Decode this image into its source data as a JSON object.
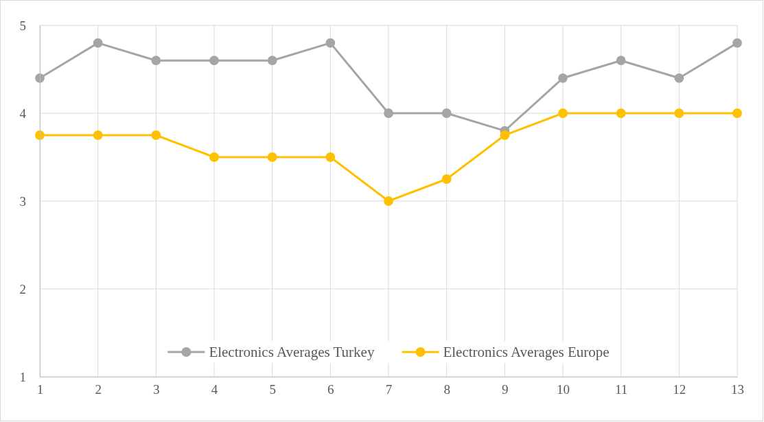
{
  "chart_data": {
    "type": "line",
    "x": [
      1,
      2,
      3,
      4,
      5,
      6,
      7,
      8,
      9,
      10,
      11,
      12,
      13
    ],
    "series": [
      {
        "name": "Electronics Averages Turkey",
        "color": "#a5a5a5",
        "values": [
          4.4,
          4.8,
          4.6,
          4.6,
          4.6,
          4.8,
          4.0,
          4.0,
          3.8,
          4.4,
          4.6,
          4.4,
          4.8
        ]
      },
      {
        "name": "Electronics Averages Europe",
        "color": "#ffc000",
        "values": [
          3.75,
          3.75,
          3.75,
          3.5,
          3.5,
          3.5,
          3.0,
          3.25,
          3.75,
          4,
          4,
          4,
          4
        ]
      }
    ],
    "xlim": [
      1,
      13
    ],
    "xticks": [
      1,
      2,
      3,
      4,
      5,
      6,
      7,
      8,
      9,
      10,
      11,
      12,
      13
    ],
    "ylim": [
      1,
      5
    ],
    "yticks": [
      1,
      2,
      3,
      4,
      5
    ],
    "grid": true,
    "legend": "bottom",
    "marker": "circle",
    "line_style": "solid"
  }
}
